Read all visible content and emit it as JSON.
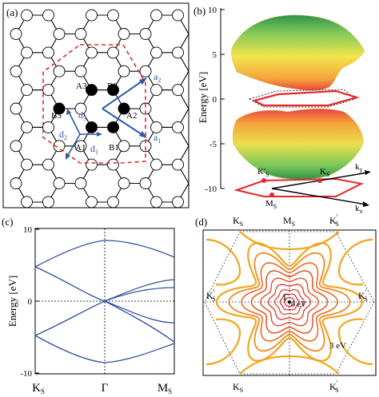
{
  "panel_a": {
    "label": "(a)",
    "atoms": {
      "a3": "A3",
      "b2": "B2",
      "b3": "B3",
      "a2_atom": "A2",
      "a1": "A1",
      "b1": "B1"
    },
    "vectors": {
      "a1": "a",
      "a1_sub": "1",
      "a2": "a",
      "a2_sub": "2",
      "d1": "d",
      "d1_sub": "1",
      "d2": "d",
      "d2_sub": "2",
      "d3": "d",
      "d3_sub": "3"
    },
    "colors": {
      "bond": "#000000",
      "atom_filled": "#000000",
      "atom_open": "#ffffff",
      "unit_cell": "#e8262a",
      "vector": "#2e5aa8"
    }
  },
  "panel_b": {
    "label": "(b)",
    "ylabel": "Energy [eV]",
    "yticks": [
      "10",
      "5",
      "0",
      "-5",
      "-10"
    ],
    "bz_labels": {
      "ks_prime": "K'",
      "ks_prime_sub": "S",
      "ks": "K",
      "ks_sub": "S",
      "ms": "M",
      "ms_sub": "S",
      "kx": "k",
      "kx_sub": "x",
      "ky": "k",
      "ky_sub": "y"
    }
  },
  "panel_c": {
    "label": "(c)",
    "ylabel": "Energy [eV]",
    "yticks": [
      "10",
      "0",
      "-10"
    ],
    "xticks": [
      {
        "main": "K",
        "sub": "S"
      },
      {
        "main": "Γ",
        "sub": ""
      },
      {
        "main": "M",
        "sub": "S"
      }
    ],
    "line_color": "#2e4fa0"
  },
  "panel_d": {
    "label": "(d)",
    "top_labels": [
      {
        "main": "K",
        "sub": "S"
      },
      {
        "main": "M",
        "sub": "S"
      },
      {
        "main": "K",
        "sub": "S",
        "prime": "'"
      }
    ],
    "bottom_labels": [
      {
        "main": "K",
        "sub": "S"
      },
      {
        "main": "K",
        "sub": "S",
        "prime": "'"
      }
    ],
    "side_left": {
      "main": "K",
      "sub": "S",
      "prime": "'"
    },
    "side_right": {
      "main": "K",
      "sub": "S",
      "prime": "'"
    },
    "center": "Γ",
    "zero_label": "0 eV",
    "three_label": "3 eV",
    "contour_colors": [
      "#f2a51c",
      "#f08a1e",
      "#ee6a20",
      "#ea4c22",
      "#e33424",
      "#d92227"
    ]
  }
}
